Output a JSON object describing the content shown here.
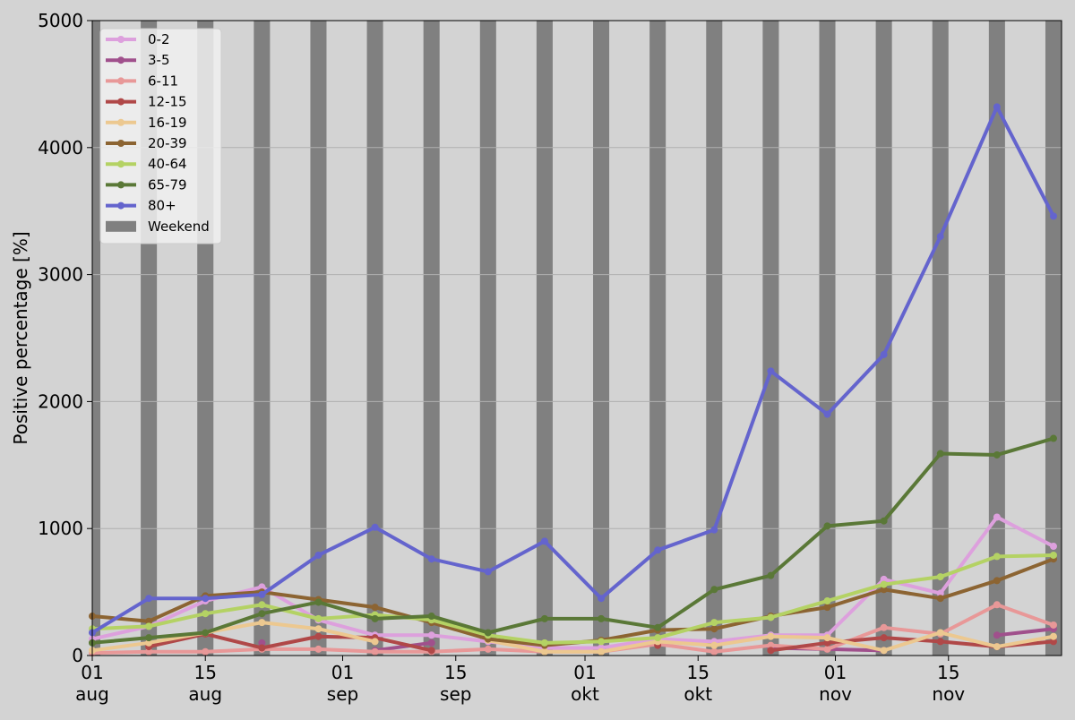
{
  "chart_data": {
    "type": "line",
    "title": "",
    "xlabel": "",
    "ylabel": "Positive percentage [%]",
    "ylim": [
      0,
      5000
    ],
    "xlim": [
      "2020-08-01",
      "2020-11-29"
    ],
    "grid": "horizontal",
    "legend_position": "top-left",
    "x_ticks": [
      {
        "date": "2020-08-01",
        "day": "01",
        "month": "aug"
      },
      {
        "date": "2020-08-15",
        "day": "15",
        "month": "aug"
      },
      {
        "date": "2020-09-01",
        "day": "01",
        "month": "sep"
      },
      {
        "date": "2020-09-15",
        "day": "15",
        "month": "sep"
      },
      {
        "date": "2020-10-01",
        "day": "01",
        "month": "okt"
      },
      {
        "date": "2020-10-15",
        "day": "15",
        "month": "okt"
      },
      {
        "date": "2020-11-01",
        "day": "01",
        "month": "nov"
      },
      {
        "date": "2020-11-15",
        "day": "15",
        "month": "nov"
      }
    ],
    "y_ticks": [
      0,
      1000,
      2000,
      3000,
      4000,
      5000
    ],
    "x": [
      "2020-08-01",
      "2020-08-08",
      "2020-08-15",
      "2020-08-22",
      "2020-08-29",
      "2020-09-05",
      "2020-09-12",
      "2020-09-19",
      "2020-09-26",
      "2020-10-03",
      "2020-10-10",
      "2020-10-17",
      "2020-10-24",
      "2020-10-31",
      "2020-11-07",
      "2020-11-14",
      "2020-11-21",
      "2020-11-28"
    ],
    "weekend_bar_dates": [
      "2020-08-01",
      "2020-08-08",
      "2020-08-15",
      "2020-08-22",
      "2020-08-29",
      "2020-09-05",
      "2020-09-12",
      "2020-09-19",
      "2020-09-26",
      "2020-10-03",
      "2020-10-10",
      "2020-10-17",
      "2020-10-24",
      "2020-10-31",
      "2020-11-07",
      "2020-11-14",
      "2020-11-21",
      "2020-11-28"
    ],
    "series": [
      {
        "name": "0-2",
        "color": "#dda0dd",
        "values": [
          130,
          230,
          430,
          540,
          280,
          160,
          160,
          110,
          60,
          60,
          130,
          110,
          160,
          160,
          600,
          490,
          1090,
          860
        ]
      },
      {
        "name": "3-5",
        "color": "#a0508c",
        "values": [
          null,
          null,
          null,
          100,
          null,
          40,
          100,
          null,
          null,
          null,
          null,
          null,
          60,
          50,
          40,
          null,
          160,
          210
        ]
      },
      {
        "name": "6-11",
        "color": "#e89898",
        "values": [
          20,
          30,
          30,
          50,
          50,
          30,
          30,
          50,
          30,
          30,
          90,
          30,
          80,
          50,
          220,
          170,
          400,
          240
        ]
      },
      {
        "name": "12-15",
        "color": "#b04848",
        "values": [
          null,
          70,
          170,
          60,
          150,
          140,
          40,
          null,
          null,
          null,
          80,
          null,
          40,
          100,
          140,
          110,
          70,
          110
        ]
      },
      {
        "name": "16-19",
        "color": "#ecc890",
        "values": [
          40,
          100,
          180,
          260,
          210,
          110,
          null,
          120,
          30,
          30,
          110,
          80,
          150,
          140,
          40,
          180,
          70,
          150
        ]
      },
      {
        "name": "20-39",
        "color": "#8c6432",
        "values": [
          310,
          270,
          470,
          500,
          440,
          380,
          260,
          130,
          80,
          120,
          200,
          210,
          310,
          380,
          520,
          450,
          590,
          760
        ]
      },
      {
        "name": "40-64",
        "color": "#b4d264",
        "values": [
          210,
          230,
          330,
          400,
          290,
          320,
          280,
          160,
          100,
          110,
          140,
          260,
          300,
          430,
          560,
          620,
          780,
          790
        ]
      },
      {
        "name": "65-79",
        "color": "#5a7837",
        "values": [
          100,
          140,
          180,
          330,
          420,
          290,
          310,
          180,
          290,
          290,
          220,
          520,
          630,
          1020,
          1060,
          1590,
          1580,
          1710
        ]
      },
      {
        "name": "80+",
        "color": "#6464cd",
        "values": [
          180,
          450,
          450,
          480,
          790,
          1010,
          760,
          660,
          900,
          450,
          830,
          990,
          2240,
          1900,
          2370,
          3300,
          4320,
          3460
        ]
      }
    ],
    "weekend": {
      "name": "Weekend",
      "color": "#808080"
    }
  }
}
